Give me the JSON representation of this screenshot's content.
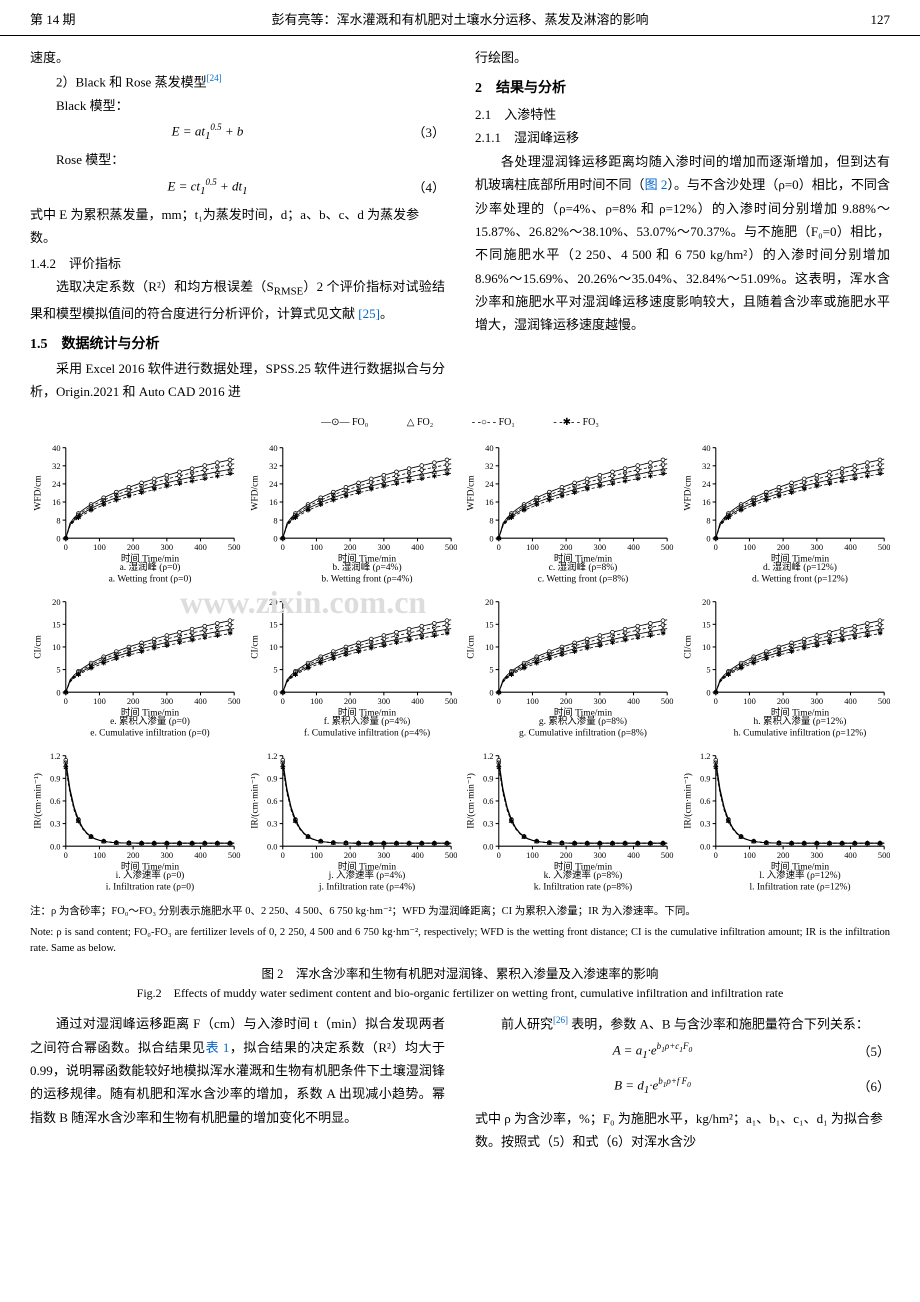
{
  "header": {
    "issue": "第 14 期",
    "title": "彭有亮等：浑水灌溉和有机肥对土壤水分运移、蒸发及淋溶的影响",
    "page": "127"
  },
  "left_col": {
    "p1": "速度。",
    "p2_prefix": "2）Black 和 Rose 蒸发模型",
    "p2_ref": "[24]",
    "black_label": "Black 模型：",
    "eq3_lhs": "E = at",
    "eq3_exp": "0.5",
    "eq3_sub": "1",
    "eq3_rhs": " + b",
    "eq3_num": "（3）",
    "rose_label": "Rose 模型：",
    "eq4_lhs": "E = ct",
    "eq4_exp": "0.5",
    "eq4_sub": "1",
    "eq4_rhs": " + dt",
    "eq4_sub2": "1",
    "eq4_num": "（4）",
    "p3": "式中 E 为累积蒸发量，mm；t₁为蒸发时间，d；a、b、c、d 为蒸发参数。",
    "sec142": "1.4.2　评价指标",
    "p4_a": "选取决定系数（R²）和均方根误差（S",
    "p4_rmse": "RMSE",
    "p4_b": "）2 个评价指标对试验结果和模型模拟值间的符合度进行分析评价，计算式见文献 ",
    "p4_ref": "[25]",
    "p4_c": "。",
    "sec15": "1.5　数据统计与分析",
    "p5": "采用 Excel 2016 软件进行数据处理，SPSS.25 软件进行数据拟合与分析，Origin.2021 和 Auto CAD 2016 进"
  },
  "right_col": {
    "p1": "行绘图。",
    "sec2": "2　结果与分析",
    "sec21": "2.1　入渗特性",
    "sec211": "2.1.1　湿润峰运移",
    "p2_a": "各处理湿润锋运移距离均随入渗时间的增加而逐渐增加，但到达有机玻璃柱底部所用时间不同（",
    "p2_ref": "图 2",
    "p2_b": "）。与不含沙处理（ρ=0）相比，不同含沙率处理的（ρ=4%、ρ=8% 和 ρ=12%）的入渗时间分别增加 9.88%～15.87%、26.82%～38.10%、53.07%～70.37%。与不施肥（F₀=0）相比，不同施肥水平（2 250、4 500 和 6 750 kg/hm²）的入渗时间分别增加 8.96%～15.69%、20.26%～35.04%、32.84%～51.09%。这表明，浑水含沙率和施肥水平对湿润峰运移速度影响较大，且随着含沙率或施肥水平增大，湿润锋运移速度越慢。"
  },
  "legend": {
    "fo0": "FO₀",
    "fo1": "FO₁",
    "fo2": "FO₂",
    "fo3": "FO₃"
  },
  "charts": {
    "grid": [
      {
        "type": "wfd",
        "rho": 0,
        "letter": "a",
        "cn": "湿润峰 (ρ=0)",
        "en": "a. Wetting front (ρ=0)",
        "ymax": 40,
        "ylabel": "WFD/cm"
      },
      {
        "type": "wfd",
        "rho": 4,
        "letter": "b",
        "cn": "湿润峰 (ρ=4%)",
        "en": "b. Wetting front (ρ=4%)",
        "ymax": 40,
        "ylabel": "WFD/cm"
      },
      {
        "type": "wfd",
        "rho": 8,
        "letter": "c",
        "cn": "湿润峰 (ρ=8%)",
        "en": "c. Wetting front (ρ=8%)",
        "ymax": 40,
        "ylabel": "WFD/cm"
      },
      {
        "type": "wfd",
        "rho": 12,
        "letter": "d",
        "cn": "湿润峰 (ρ=12%)",
        "en": "d. Wetting front (ρ=12%)",
        "ymax": 40,
        "ylabel": "WFD/cm"
      },
      {
        "type": "ci",
        "rho": 0,
        "letter": "e",
        "cn": "累积入渗量 (ρ=0)",
        "en": "e. Cumulative infiltration (ρ=0)",
        "ymax": 20,
        "ylabel": "CI/cm"
      },
      {
        "type": "ci",
        "rho": 4,
        "letter": "f",
        "cn": "累积入渗量 (ρ=4%)",
        "en": "f. Cumulative infiltration (ρ=4%)",
        "ymax": 20,
        "ylabel": "CI/cm"
      },
      {
        "type": "ci",
        "rho": 8,
        "letter": "g",
        "cn": "累积入渗量 (ρ=8%)",
        "en": "g. Cumulative infiltration (ρ=8%)",
        "ymax": 20,
        "ylabel": "CI/cm"
      },
      {
        "type": "ci",
        "rho": 12,
        "letter": "h",
        "cn": "累积入渗量 (ρ=12%)",
        "en": "h. Cumulative infiltration (ρ=12%)",
        "ymax": 20,
        "ylabel": "CI/cm"
      },
      {
        "type": "ir",
        "rho": 0,
        "letter": "i",
        "cn": "入渗速率 (ρ=0)",
        "en": "i. Infiltration rate (ρ=0)",
        "ymax": 1.2,
        "ylabel": "IR/(cm·min⁻¹)"
      },
      {
        "type": "ir",
        "rho": 4,
        "letter": "j",
        "cn": "入渗速率 (ρ=4%)",
        "en": "j. Infiltration rate (ρ=4%)",
        "ymax": 1.2,
        "ylabel": "IR/(cm·min⁻¹)"
      },
      {
        "type": "ir",
        "rho": 8,
        "letter": "k",
        "cn": "入渗速率 (ρ=8%)",
        "en": "k. Infiltration rate (ρ=8%)",
        "ymax": 1.2,
        "ylabel": "IR/(cm·min⁻¹)"
      },
      {
        "type": "ir",
        "rho": 12,
        "letter": "l",
        "cn": "入渗速率 (ρ=12%)",
        "en": "l. Infiltration rate (ρ=12%)",
        "ymax": 1.2,
        "ylabel": "IR/(cm·min⁻¹)"
      }
    ],
    "xmax": 500,
    "xstep": 100,
    "xlabel": "时间 Time/min",
    "series_colors": [
      "#000000",
      "#000000",
      "#000000",
      "#000000"
    ],
    "series_markers": [
      "circle",
      "circle-open",
      "triangle",
      "star"
    ],
    "axis_color": "#000000",
    "bg_color": "#ffffff",
    "axis_fontsize": 8,
    "label_fontsize": 9,
    "line_width": 0.8
  },
  "fig_note": {
    "cn": "注：ρ 为含砂率；FO₀～FO₃ 分别表示施肥水平 0、2 250、4 500、6 750 kg·hm⁻²；WFD 为湿润峰距离；CI 为累积入渗量；IR 为入渗速率。下同。",
    "en": "Note: ρ is sand content; FO₀-FO₃ are fertilizer levels of 0, 2 250, 4 500 and 6 750 kg·hm⁻², respectively; WFD is the wetting front distance; CI is the cumulative infiltration amount; IR is the infiltration rate. Same as below."
  },
  "fig_title": {
    "cn": "图 2　浑水含沙率和生物有机肥对湿润锋、累积入渗量及入渗速率的影响",
    "en": "Fig.2　Effects of muddy water sediment content and bio-organic fertilizer on wetting front, cumulative infiltration and infiltration rate"
  },
  "bottom_left": {
    "p1_a": "通过对湿润峰运移距离 F（cm）与入渗时间 t（min）拟合发现两者之间符合幂函数。拟合结果见",
    "p1_ref": "表 1",
    "p1_b": "，拟合结果的决定系数（R²）均大于 0.99，说明幂函数能较好地模拟浑水灌溉和生物有机肥条件下土壤湿润锋的运移规律。随有机肥和浑水含沙率的增加，系数 A 出现减小趋势。幂指数 B 随浑水含沙率和生物有机肥量的增加变化不明显。"
  },
  "bottom_right": {
    "p1_a": "前人研究",
    "p1_ref": "[26]",
    "p1_b": " 表明，参数 A、B 与含沙率和施肥量符合下列关系：",
    "eq5_content": "A = a₁·e^(b₁ρ+c₁F₀)",
    "eq5_num": "（5）",
    "eq6_content": "B = d₁·e^(b₁ρ+fF₀)",
    "eq6_num": "（6）",
    "p2": "式中 ρ 为含沙率，%；F₀ 为施肥水平，kg/hm²；a₁、b₁、c₁、d₁ 为拟合参数。按照式（5）和式（6）对浑水含沙"
  }
}
